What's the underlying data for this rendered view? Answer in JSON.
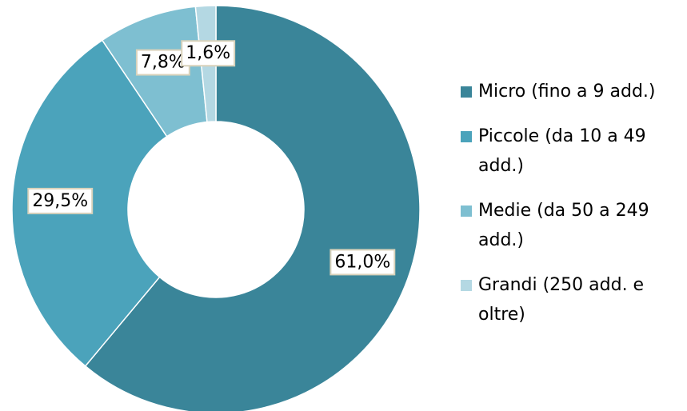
{
  "chart_data": {
    "type": "donut",
    "categories": [
      "Micro (fino a 9 add.)",
      "Piccole (da 10 a 49 add.)",
      "Medie (da 50 a 249 add.)",
      "Grandi (250 add. e oltre)"
    ],
    "values": [
      61.0,
      29.5,
      7.8,
      1.6
    ],
    "value_labels": [
      "61,0%",
      "29,5%",
      "7,8%",
      "1,6%"
    ],
    "colors": [
      "#3a8599",
      "#4ba3bb",
      "#7ebfd1",
      "#b4d8e3"
    ],
    "legend": "right"
  }
}
